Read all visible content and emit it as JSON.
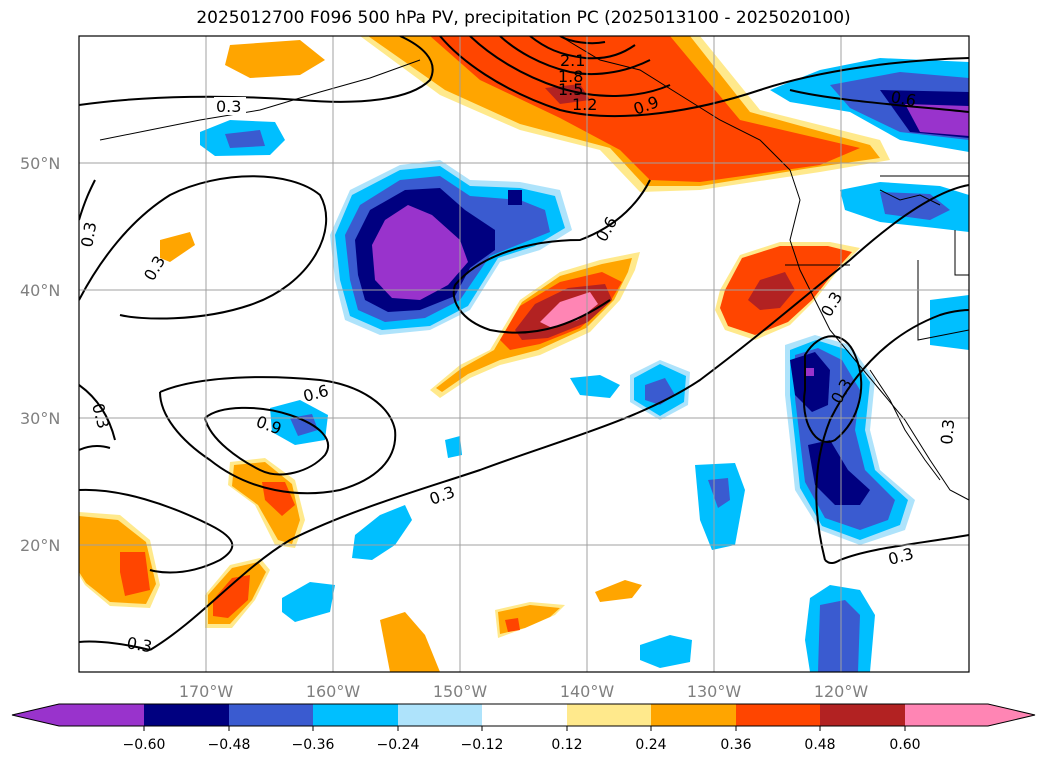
{
  "title": "2025012700 F096 500 hPa PV, precipitation PC (2025013100 - 2025020100)",
  "map": {
    "lat_labels": [
      "50°N",
      "40°N",
      "30°N",
      "20°N"
    ],
    "lon_labels": [
      "170°W",
      "160°W",
      "150°W",
      "140°W",
      "130°W",
      "120°W"
    ],
    "contour_labels": [
      "0.3",
      "0.3",
      "0.3",
      "0.3",
      "0.3",
      "0.3",
      "0.3",
      "0.3",
      "0.3",
      "0.3",
      "0.6",
      "0.6",
      "0.6",
      "0.9",
      "0.9",
      "1.2",
      "1.5",
      "1.8",
      "2.1"
    ]
  },
  "colorbar": {
    "ticks": [
      "−0.60",
      "−0.48",
      "−0.36",
      "−0.24",
      "−0.12",
      "0.12",
      "0.24",
      "0.36",
      "0.48",
      "0.60"
    ],
    "colors": [
      "#9933cc",
      "#000080",
      "#3a5bd0",
      "#00bfff",
      "#aee3fb",
      "#ffffff",
      "#ffe98c",
      "#ffa500",
      "#ff4500",
      "#b22222",
      "#ff85b4"
    ]
  }
}
